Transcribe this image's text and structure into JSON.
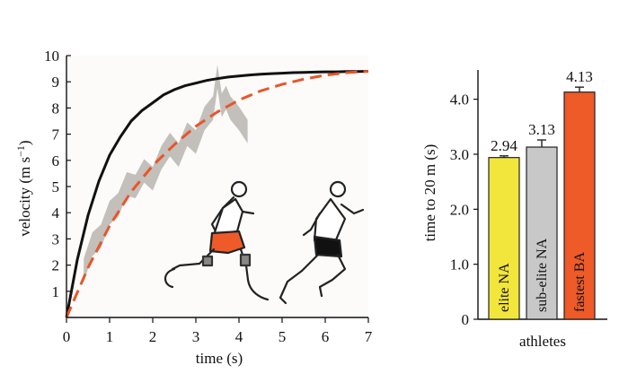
{
  "chart_data": [
    {
      "type": "line",
      "xlabel": "time (s)",
      "ylabel": "velocity (m s−1)",
      "xlim": [
        0,
        7
      ],
      "ylim": [
        0,
        10
      ],
      "x_ticks": [
        "0",
        "1",
        "2",
        "3",
        "4",
        "5",
        "6",
        "7"
      ],
      "y_ticks": [
        "1",
        "2",
        "3",
        "4",
        "5",
        "6",
        "7",
        "8",
        "9",
        "10"
      ],
      "grid": false,
      "legend": "none",
      "series": [
        {
          "style": "solid",
          "color": "#111111",
          "x": [
            0,
            0.25,
            0.5,
            0.75,
            1,
            1.25,
            1.5,
            1.75,
            2,
            2.25,
            2.5,
            2.75,
            3,
            3.25,
            3.5,
            3.75,
            4,
            4.25,
            4.5,
            4.75,
            5,
            5.25,
            5.5,
            5.75,
            6,
            6.25,
            6.5,
            6.75,
            7
          ],
          "values": [
            0,
            2.2,
            3.9,
            5.2,
            6.2,
            6.9,
            7.5,
            7.9,
            8.2,
            8.5,
            8.7,
            8.85,
            8.95,
            9.05,
            9.12,
            9.18,
            9.22,
            9.26,
            9.29,
            9.31,
            9.33,
            9.35,
            9.36,
            9.37,
            9.38,
            9.38,
            9.39,
            9.39,
            9.4
          ]
        },
        {
          "style": "dashed",
          "color": "#e8552a",
          "x": [
            0,
            0.5,
            1,
            1.5,
            2,
            2.5,
            3,
            3.5,
            4,
            4.5,
            5,
            5.5,
            6,
            6.5,
            7
          ],
          "values": [
            0,
            1.9,
            3.5,
            4.8,
            5.8,
            6.6,
            7.3,
            7.85,
            8.3,
            8.65,
            8.9,
            9.1,
            9.25,
            9.35,
            9.4
          ]
        }
      ],
      "band": {
        "color": "#bdb8b3",
        "x": [
          0.4,
          0.6,
          0.8,
          1.0,
          1.2,
          1.4,
          1.6,
          1.8,
          2.0,
          2.2,
          2.4,
          2.6,
          2.8,
          3.0,
          3.2,
          3.4,
          3.5,
          3.6,
          3.7,
          3.8,
          4.0,
          4.2
        ],
        "values": [
          1.8,
          2.8,
          3.1,
          4.0,
          4.3,
          5.1,
          5.0,
          5.6,
          5.3,
          6.1,
          6.6,
          6.2,
          7.0,
          6.7,
          7.6,
          8.0,
          9.2,
          8.1,
          8.4,
          8.0,
          7.6,
          7.1
        ]
      }
    },
    {
      "type": "bar",
      "ylabel": "time to 20 m (s)",
      "xlabel": "athletes",
      "ylim": [
        0,
        4.5
      ],
      "y_ticks": [
        "0",
        "1.0",
        "2.0",
        "3.0",
        "4.0"
      ],
      "categories": [
        "elite NA",
        "sub-elite NA",
        "fastest BA"
      ],
      "values": [
        2.94,
        3.13,
        4.13
      ],
      "value_labels": [
        "2.94",
        "3.13",
        "4.13"
      ],
      "errors": [
        0.03,
        0.13,
        0.09
      ],
      "colors": [
        "#f2e63c",
        "#c8c8c8",
        "#ee5a28"
      ]
    }
  ]
}
